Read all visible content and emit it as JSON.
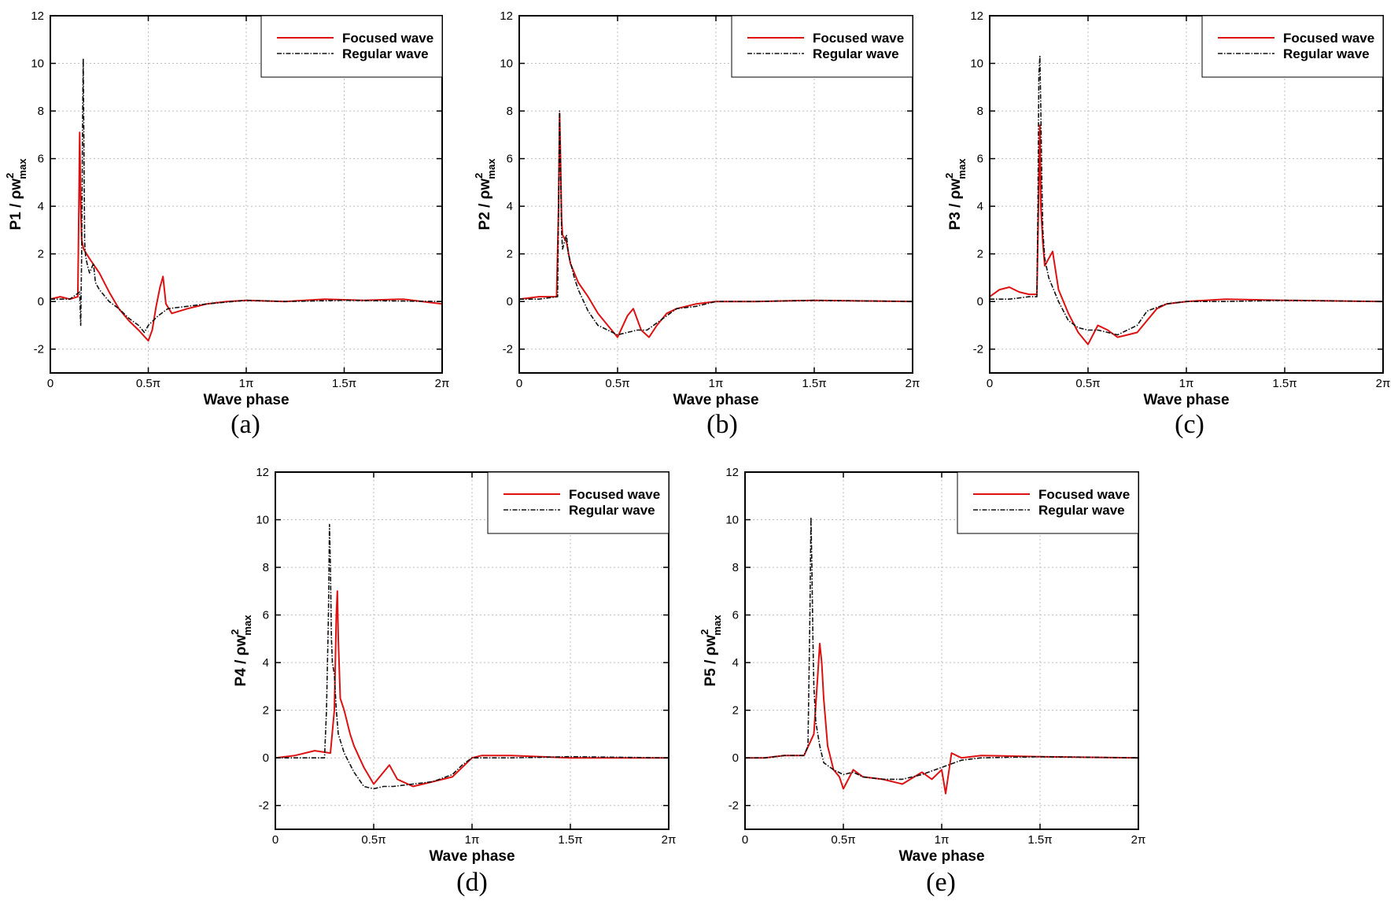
{
  "colors": {
    "focused": "#dd1111",
    "regular": "#111111"
  },
  "chart_data": [
    {
      "type": "line",
      "panel_caption": "(a)",
      "ylabel_main": "P1 / ρw",
      "ylabel_sup": "2",
      "ylabel_sub": "max",
      "xlabel": "Wave phase",
      "xlim": [
        0,
        2
      ],
      "ylim": [
        -3,
        12
      ],
      "x_ticks": [
        0,
        0.5,
        1,
        1.5,
        2
      ],
      "x_tick_labels": [
        "0",
        "0.5π",
        "1π",
        "1.5π",
        "2π"
      ],
      "y_ticks": [
        -2,
        0,
        2,
        4,
        6,
        8,
        10,
        12
      ],
      "y_tick_labels": [
        "-2",
        "0",
        "2",
        "4",
        "6",
        "8",
        "10",
        "12"
      ],
      "legend_position": "top-right",
      "series": [
        {
          "name": "Focused wave",
          "style": "solid",
          "x": [
            0,
            0.05,
            0.1,
            0.14,
            0.145,
            0.15,
            0.155,
            0.16,
            0.17,
            0.2,
            0.25,
            0.3,
            0.35,
            0.4,
            0.45,
            0.5,
            0.52,
            0.54,
            0.56,
            0.575,
            0.59,
            0.62,
            0.7,
            0.8,
            0.9,
            1.0,
            1.2,
            1.4,
            1.6,
            1.8,
            2.0
          ],
          "y": [
            0.1,
            0.2,
            0.1,
            0.2,
            3.5,
            7.1,
            4.0,
            2.6,
            2.2,
            1.8,
            1.2,
            0.4,
            -0.3,
            -0.8,
            -1.2,
            -1.65,
            -1.2,
            -0.2,
            0.6,
            1.05,
            -0.1,
            -0.5,
            -0.3,
            -0.1,
            0.0,
            0.05,
            0.0,
            0.1,
            0.05,
            0.1,
            -0.1
          ]
        },
        {
          "name": "Regular wave",
          "style": "dashdot",
          "x": [
            0,
            0.1,
            0.15,
            0.155,
            0.16,
            0.165,
            0.168,
            0.172,
            0.175,
            0.18,
            0.19,
            0.2,
            0.22,
            0.23,
            0.25,
            0.3,
            0.35,
            0.4,
            0.45,
            0.48,
            0.5,
            0.55,
            0.6,
            0.7,
            0.8,
            1.0,
            1.2,
            1.5,
            2.0
          ],
          "y": [
            0.1,
            0.1,
            0.4,
            -1.0,
            2.0,
            8.0,
            10.2,
            6.0,
            2.5,
            1.9,
            1.5,
            1.2,
            1.6,
            0.8,
            0.5,
            0.0,
            -0.3,
            -0.7,
            -1.0,
            -1.3,
            -1.0,
            -0.6,
            -0.3,
            -0.2,
            -0.1,
            0.05,
            0.0,
            0.05,
            0.0
          ]
        }
      ]
    },
    {
      "type": "line",
      "panel_caption": "(b)",
      "ylabel_main": "P2 / ρw",
      "ylabel_sup": "2",
      "ylabel_sub": "max",
      "xlabel": "Wave phase",
      "xlim": [
        0,
        2
      ],
      "ylim": [
        -3,
        12
      ],
      "x_ticks": [
        0,
        0.5,
        1,
        1.5,
        2
      ],
      "x_tick_labels": [
        "0",
        "0.5π",
        "1π",
        "1.5π",
        "2π"
      ],
      "y_ticks": [
        -2,
        0,
        2,
        4,
        6,
        8,
        10,
        12
      ],
      "y_tick_labels": [
        "-2",
        "0",
        "2",
        "4",
        "6",
        "8",
        "10",
        "12"
      ],
      "legend_position": "top-right",
      "series": [
        {
          "name": "Focused wave",
          "style": "solid",
          "x": [
            0,
            0.1,
            0.19,
            0.2,
            0.205,
            0.21,
            0.215,
            0.22,
            0.24,
            0.26,
            0.3,
            0.35,
            0.4,
            0.45,
            0.5,
            0.55,
            0.58,
            0.62,
            0.66,
            0.7,
            0.75,
            0.8,
            0.9,
            1.0,
            1.2,
            1.5,
            2.0
          ],
          "y": [
            0.1,
            0.2,
            0.2,
            4.0,
            7.9,
            6.0,
            3.5,
            2.8,
            2.5,
            1.6,
            0.8,
            0.2,
            -0.5,
            -1.0,
            -1.5,
            -0.6,
            -0.3,
            -1.2,
            -1.5,
            -1.0,
            -0.5,
            -0.3,
            -0.1,
            0.0,
            0.0,
            0.05,
            0.0
          ]
        },
        {
          "name": "Regular wave",
          "style": "dashdot",
          "x": [
            0,
            0.1,
            0.195,
            0.2,
            0.205,
            0.21,
            0.215,
            0.22,
            0.24,
            0.25,
            0.28,
            0.3,
            0.35,
            0.4,
            0.45,
            0.5,
            0.55,
            0.6,
            0.65,
            0.7,
            0.8,
            0.9,
            1.0,
            1.2,
            1.5,
            2.0
          ],
          "y": [
            0.1,
            0.1,
            0.2,
            4.0,
            8.0,
            5.5,
            3.0,
            2.2,
            2.8,
            2.0,
            1.0,
            0.5,
            -0.4,
            -1.0,
            -1.2,
            -1.4,
            -1.3,
            -1.2,
            -1.2,
            -0.9,
            -0.3,
            -0.2,
            0.0,
            0.0,
            0.05,
            0.0
          ]
        }
      ]
    },
    {
      "type": "line",
      "panel_caption": "(c)",
      "ylabel_main": "P3 / ρw",
      "ylabel_sup": "2",
      "ylabel_sub": "max",
      "xlabel": "Wave phase",
      "xlim": [
        0,
        2
      ],
      "ylim": [
        -3,
        12
      ],
      "x_ticks": [
        0,
        0.5,
        1,
        1.5,
        2
      ],
      "x_tick_labels": [
        "0",
        "0.5π",
        "1π",
        "1.5π",
        "2π"
      ],
      "y_ticks": [
        -2,
        0,
        2,
        4,
        6,
        8,
        10,
        12
      ],
      "y_tick_labels": [
        "-2",
        "0",
        "2",
        "4",
        "6",
        "8",
        "10",
        "12"
      ],
      "legend_position": "top-right",
      "series": [
        {
          "name": "Focused wave",
          "style": "solid",
          "x": [
            0,
            0.05,
            0.1,
            0.15,
            0.2,
            0.24,
            0.25,
            0.255,
            0.26,
            0.27,
            0.28,
            0.3,
            0.32,
            0.35,
            0.4,
            0.45,
            0.5,
            0.55,
            0.6,
            0.65,
            0.7,
            0.75,
            0.8,
            0.85,
            0.9,
            1.0,
            1.2,
            1.5,
            2.0
          ],
          "y": [
            0.2,
            0.5,
            0.6,
            0.4,
            0.3,
            0.3,
            5.0,
            7.4,
            4.0,
            2.5,
            1.5,
            1.8,
            2.1,
            0.5,
            -0.5,
            -1.3,
            -1.8,
            -1.0,
            -1.2,
            -1.5,
            -1.4,
            -1.3,
            -0.8,
            -0.3,
            -0.1,
            0.0,
            0.1,
            0.05,
            0.0
          ]
        },
        {
          "name": "Regular wave",
          "style": "dashdot",
          "x": [
            0,
            0.1,
            0.2,
            0.24,
            0.245,
            0.25,
            0.255,
            0.26,
            0.265,
            0.27,
            0.28,
            0.3,
            0.35,
            0.4,
            0.45,
            0.5,
            0.55,
            0.6,
            0.65,
            0.7,
            0.75,
            0.8,
            0.9,
            1.0,
            1.2,
            1.5,
            2.0
          ],
          "y": [
            0.1,
            0.1,
            0.2,
            0.2,
            4.0,
            9.5,
            10.3,
            8.0,
            5.0,
            3.0,
            1.8,
            1.0,
            0.0,
            -0.8,
            -1.1,
            -1.2,
            -1.2,
            -1.3,
            -1.4,
            -1.2,
            -1.0,
            -0.4,
            -0.1,
            0.0,
            0.0,
            0.05,
            0.0
          ]
        }
      ]
    },
    {
      "type": "line",
      "panel_caption": "(d)",
      "ylabel_main": "P4 / ρw",
      "ylabel_sup": "2",
      "ylabel_sub": "max",
      "xlabel": "Wave phase",
      "xlim": [
        0,
        2
      ],
      "ylim": [
        -3,
        12
      ],
      "x_ticks": [
        0,
        0.5,
        1,
        1.5,
        2
      ],
      "x_tick_labels": [
        "0",
        "0.5π",
        "1π",
        "1.5π",
        "2π"
      ],
      "y_ticks": [
        -2,
        0,
        2,
        4,
        6,
        8,
        10,
        12
      ],
      "y_tick_labels": [
        "-2",
        "0",
        "2",
        "4",
        "6",
        "8",
        "10",
        "12"
      ],
      "legend_position": "top-right",
      "series": [
        {
          "name": "Focused wave",
          "style": "solid",
          "x": [
            0,
            0.1,
            0.2,
            0.28,
            0.3,
            0.31,
            0.315,
            0.32,
            0.33,
            0.35,
            0.38,
            0.4,
            0.45,
            0.5,
            0.55,
            0.58,
            0.62,
            0.7,
            0.8,
            0.9,
            0.95,
            1.0,
            1.05,
            1.2,
            1.5,
            2.0
          ],
          "y": [
            0.0,
            0.1,
            0.3,
            0.2,
            2.0,
            6.0,
            7.0,
            5.0,
            2.5,
            2.0,
            1.0,
            0.5,
            -0.4,
            -1.1,
            -0.6,
            -0.3,
            -0.9,
            -1.2,
            -1.0,
            -0.8,
            -0.4,
            0.0,
            0.1,
            0.1,
            0.0,
            0.0
          ]
        },
        {
          "name": "Regular wave",
          "style": "dashdot",
          "x": [
            0,
            0.1,
            0.2,
            0.25,
            0.26,
            0.27,
            0.275,
            0.28,
            0.285,
            0.29,
            0.3,
            0.31,
            0.32,
            0.35,
            0.4,
            0.45,
            0.5,
            0.55,
            0.6,
            0.7,
            0.8,
            0.9,
            0.95,
            1.0,
            1.2,
            1.5,
            2.0
          ],
          "y": [
            0.0,
            0.0,
            0.0,
            0.0,
            2.0,
            6.0,
            9.8,
            8.0,
            5.0,
            4.0,
            3.5,
            2.0,
            1.0,
            0.2,
            -0.6,
            -1.2,
            -1.3,
            -1.2,
            -1.2,
            -1.1,
            -1.0,
            -0.7,
            -0.3,
            0.0,
            0.0,
            0.05,
            0.0
          ]
        }
      ]
    },
    {
      "type": "line",
      "panel_caption": "(e)",
      "ylabel_main": "P5 / ρw",
      "ylabel_sup": "2",
      "ylabel_sub": "max",
      "xlabel": "Wave phase",
      "xlim": [
        0,
        2
      ],
      "ylim": [
        -3,
        12
      ],
      "x_ticks": [
        0,
        0.5,
        1,
        1.5,
        2
      ],
      "x_tick_labels": [
        "0",
        "0.5π",
        "1π",
        "1.5π",
        "2π"
      ],
      "y_ticks": [
        -2,
        0,
        2,
        4,
        6,
        8,
        10,
        12
      ],
      "y_tick_labels": [
        "-2",
        "0",
        "2",
        "4",
        "6",
        "8",
        "10",
        "12"
      ],
      "legend_position": "top-right",
      "series": [
        {
          "name": "Focused wave",
          "style": "solid",
          "x": [
            0,
            0.1,
            0.2,
            0.3,
            0.35,
            0.37,
            0.38,
            0.39,
            0.4,
            0.42,
            0.45,
            0.48,
            0.5,
            0.55,
            0.6,
            0.7,
            0.8,
            0.9,
            0.95,
            1.0,
            1.02,
            1.05,
            1.1,
            1.2,
            1.5,
            2.0
          ],
          "y": [
            0.0,
            0.0,
            0.1,
            0.1,
            1.0,
            3.5,
            4.8,
            4.0,
            2.5,
            0.5,
            -0.5,
            -0.8,
            -1.3,
            -0.5,
            -0.8,
            -0.9,
            -1.1,
            -0.6,
            -0.9,
            -0.5,
            -1.5,
            0.2,
            0.0,
            0.1,
            0.05,
            0.0
          ]
        },
        {
          "name": "Regular wave",
          "style": "dashdot",
          "x": [
            0,
            0.1,
            0.2,
            0.3,
            0.32,
            0.33,
            0.335,
            0.34,
            0.345,
            0.35,
            0.36,
            0.38,
            0.4,
            0.45,
            0.5,
            0.55,
            0.6,
            0.7,
            0.8,
            0.9,
            1.0,
            1.1,
            1.2,
            1.5,
            2.0
          ],
          "y": [
            0.0,
            0.0,
            0.1,
            0.1,
            0.5,
            6.0,
            10.1,
            8.0,
            5.0,
            3.0,
            1.5,
            0.5,
            -0.2,
            -0.5,
            -0.7,
            -0.6,
            -0.8,
            -0.9,
            -0.9,
            -0.7,
            -0.4,
            -0.1,
            0.0,
            0.05,
            0.0
          ]
        }
      ]
    }
  ]
}
